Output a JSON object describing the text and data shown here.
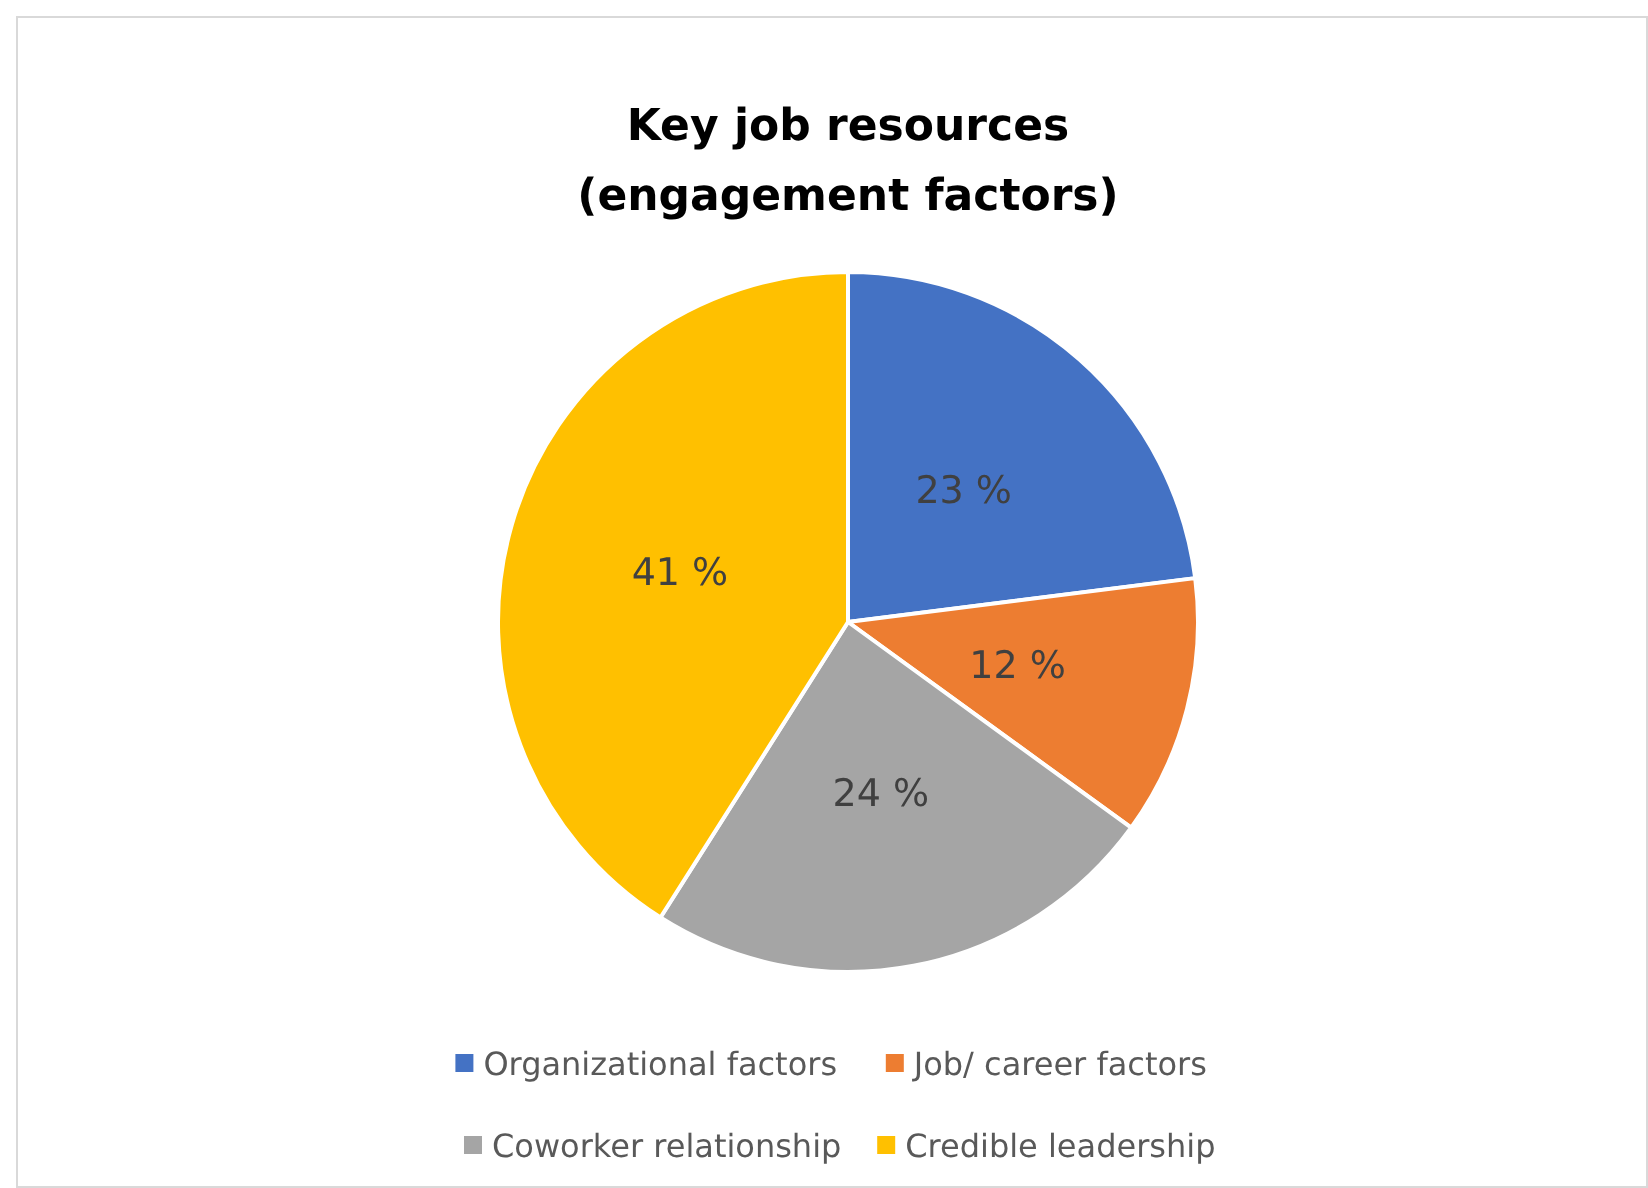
{
  "chart_data": {
    "type": "pie",
    "title": "Key job resources\n(engagement factors)",
    "categories": [
      "Organizational factors",
      "Job/ career factors",
      "Coworker relationship",
      "Credible leadership"
    ],
    "values": [
      23,
      12,
      24,
      41
    ],
    "colors": [
      "#4472c4",
      "#ed7d31",
      "#a5a5a5",
      "#ffc000"
    ],
    "value_labels": [
      "23 %",
      "12 %",
      "24 %",
      "41 %"
    ],
    "legend": "bottom"
  }
}
